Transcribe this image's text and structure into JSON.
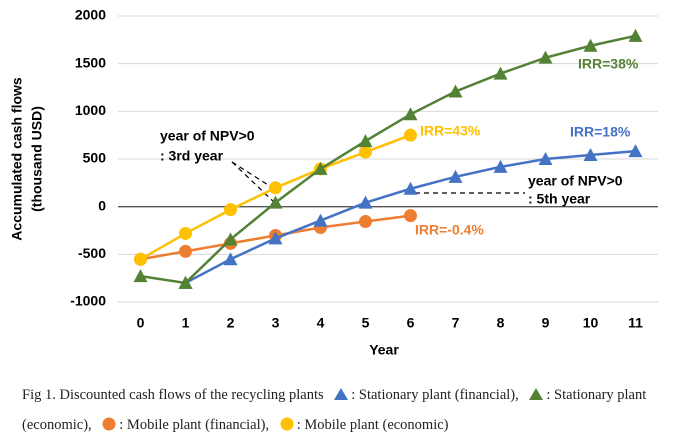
{
  "chart_data": {
    "type": "line",
    "xlabel": "Year",
    "ylabel": [
      "Accumulated cash flows",
      "(thousand USD)"
    ],
    "x": [
      0,
      1,
      2,
      3,
      4,
      5,
      6,
      7,
      8,
      9,
      10,
      11
    ],
    "xlim": [
      -0.5,
      11.5
    ],
    "xticks": [
      0,
      1,
      2,
      3,
      4,
      5,
      6,
      7,
      8,
      9,
      10,
      11
    ],
    "ylim": [
      -1000,
      2000
    ],
    "yticks": [
      -1000,
      -500,
      0,
      500,
      1000,
      1500,
      2000
    ],
    "grid": true,
    "series": [
      {
        "name": ": Stationary plant (financial),",
        "color": "#4472c4",
        "marker": "triangle",
        "values": [
          null,
          -800,
          -552,
          -333,
          -146,
          42,
          188,
          313,
          417,
          500,
          542,
          583
        ]
      },
      {
        "name": ": Stationary plant (economic),",
        "color": "#548235",
        "marker": "triangle",
        "values": [
          -729,
          -800,
          -344,
          42,
          396,
          688,
          969,
          1208,
          1396,
          1563,
          1688,
          1792
        ]
      },
      {
        "name": ": Mobile plant (financial),",
        "color": "#ed7d31",
        "marker": "circle",
        "values": [
          -552,
          -469,
          -385,
          -302,
          -219,
          -156,
          -94,
          null,
          null,
          null,
          null,
          null
        ]
      },
      {
        "name": ": Mobile plant (economic)",
        "color": "#ffc000",
        "marker": "circle",
        "values": [
          -552,
          -281,
          -31,
          198,
          396,
          573,
          750,
          null,
          null,
          null,
          null,
          null
        ]
      }
    ],
    "annotations": [
      "IRR=38%",
      "IRR=43%",
      "IRR=18%",
      "IRR=-0.4%",
      "year of NPV>0",
      ": 3rd year",
      "year of NPV>0",
      ": 5th year"
    ],
    "caption": "Fig 1. Discounted cash flows of the recycling plants"
  }
}
